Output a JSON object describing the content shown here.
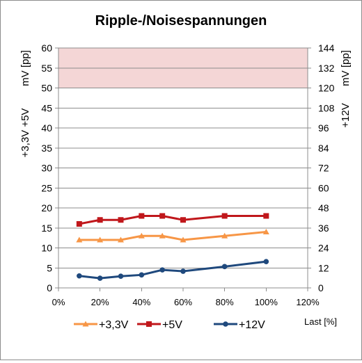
{
  "chart_data": {
    "type": "line",
    "title": "Ripple-/Noisespannungen",
    "x": [
      10,
      20,
      30,
      40,
      50,
      60,
      80,
      100
    ],
    "x_tick_labels": [
      "0%",
      "20%",
      "40%",
      "60%",
      "80%",
      "100%",
      "120%"
    ],
    "x_ticks": [
      0,
      20,
      40,
      60,
      80,
      100,
      120
    ],
    "xlim": [
      0,
      120
    ],
    "xlabel": "Last [%]",
    "y_left": {
      "label_top": "mV [pp]",
      "label_bottom": "+3,3V +5V",
      "lim": [
        0,
        60
      ],
      "ticks": [
        0,
        5,
        10,
        15,
        20,
        25,
        30,
        35,
        40,
        45,
        50,
        55,
        60
      ]
    },
    "y_right": {
      "label_top": "mV [pp]",
      "label_bottom": "+12V",
      "lim": [
        0,
        144
      ],
      "ticks": [
        0,
        12,
        24,
        36,
        48,
        60,
        72,
        84,
        96,
        108,
        120,
        132,
        144
      ]
    },
    "limit_band": {
      "from": 50,
      "to": 60,
      "color": "#f4d6d6"
    },
    "grid": true,
    "legend_position": "bottom",
    "series": [
      {
        "name": "+3,3V",
        "axis": "left",
        "color": "#f79646",
        "marker": "triangle",
        "values": [
          12,
          12,
          12,
          13,
          13,
          12,
          13,
          14
        ]
      },
      {
        "name": "+5V",
        "axis": "left",
        "color": "#c0171b",
        "marker": "square",
        "values": [
          16,
          17,
          17,
          18,
          18,
          17,
          18,
          18
        ]
      },
      {
        "name": "+12V",
        "axis": "right",
        "color": "#1f497d",
        "marker": "circle",
        "values": [
          7.2,
          5.8,
          7,
          7.8,
          10.8,
          10,
          12.8,
          15.8
        ]
      }
    ]
  }
}
